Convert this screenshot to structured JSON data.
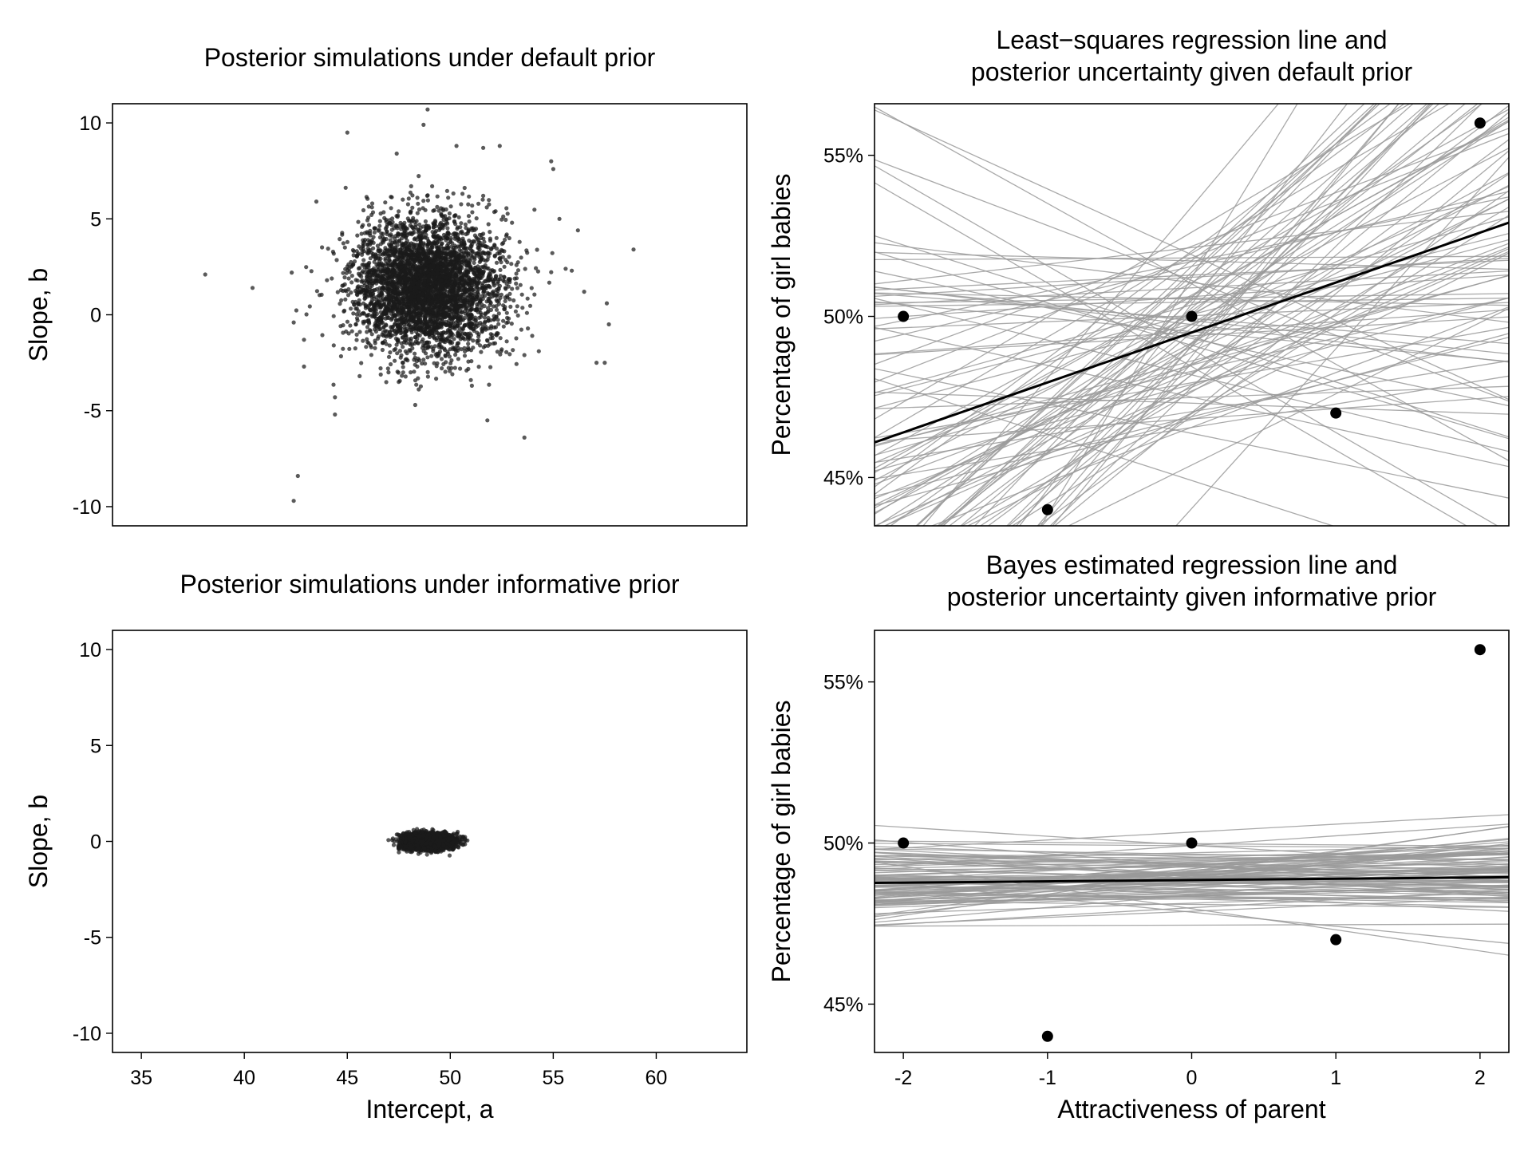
{
  "chart_data": [
    {
      "type": "scatter",
      "title": [
        "Posterior simulations under default prior"
      ],
      "xlabel": "",
      "ylabel": "Slope, b",
      "xlim": [
        33.6,
        64.4
      ],
      "ylim": [
        -11,
        11
      ],
      "xticks": [],
      "yticks": [
        10,
        5,
        0,
        -5,
        -10
      ],
      "ytick_labels": [
        "10",
        "5",
        "0",
        "-5",
        "-10"
      ],
      "grid": false,
      "point_color": "#1a1a1a",
      "points": [
        [
          48.9,
          10.7
        ],
        [
          48.7,
          9.9
        ],
        [
          45.0,
          9.5
        ],
        [
          50.3,
          8.8
        ],
        [
          51.6,
          8.7
        ],
        [
          52.4,
          8.8
        ],
        [
          47.4,
          8.4
        ],
        [
          54.9,
          8.0
        ],
        [
          55.0,
          7.6
        ],
        [
          43.5,
          5.9
        ],
        [
          38.1,
          2.1
        ],
        [
          40.4,
          1.4
        ],
        [
          42.3,
          2.2
        ],
        [
          42.4,
          -0.4
        ],
        [
          42.9,
          -1.3
        ],
        [
          42.9,
          -2.7
        ],
        [
          44.4,
          -4.3
        ],
        [
          44.4,
          -5.2
        ],
        [
          48.3,
          -4.7
        ],
        [
          51.8,
          -5.5
        ],
        [
          53.6,
          -6.4
        ],
        [
          42.6,
          -8.4
        ],
        [
          42.4,
          -9.7
        ],
        [
          58.9,
          3.4
        ],
        [
          57.6,
          0.6
        ],
        [
          57.5,
          -2.5
        ],
        [
          57.1,
          -2.5
        ],
        [
          57.7,
          -0.5
        ],
        [
          56.5,
          1.2
        ],
        [
          55.6,
          2.4
        ],
        [
          56.2,
          4.4
        ],
        [
          55.9,
          2.3
        ],
        [
          55.3,
          5.0
        ],
        [
          47.3,
          -2.4
        ],
        [
          47.0,
          -3.0
        ],
        [
          48.4,
          -2.7
        ],
        [
          50.1,
          -3.1
        ],
        [
          51.0,
          -3.4
        ],
        [
          53.6,
          -2.1
        ],
        [
          54.3,
          -1.9
        ],
        [
          45.6,
          -3.2
        ],
        [
          46.1,
          -0.8
        ],
        [
          51.6,
          6.2
        ],
        [
          52.2,
          5.4
        ],
        [
          53.0,
          4.8
        ],
        [
          49.9,
          6.1
        ],
        [
          48.1,
          6.7
        ],
        [
          46.2,
          5.6
        ]
      ]
    },
    {
      "type": "line",
      "title": [
        "Least−squares regression line and",
        "posterior uncertainty given default prior"
      ],
      "xlabel": "",
      "ylabel": "Percentage of girl babies",
      "xlim": [
        -2.2,
        2.2
      ],
      "ylim": [
        43.5,
        56.6
      ],
      "xticks": [],
      "yticks": [
        55,
        50,
        45
      ],
      "ytick_labels": [
        "55%",
        "50%",
        "45%"
      ],
      "grid": false,
      "line_color": "#9a9a9a",
      "fit_color": "#000000",
      "fit": {
        "intercept": 49.5,
        "slope": 1.55
      },
      "posterior_center": {
        "intercept": 49.5,
        "slope": 1.55
      },
      "posterior_spread": {
        "intercept": 2.0,
        "slope": 2.05
      },
      "posterior_draws": 100,
      "points": [
        [
          -2,
          50
        ],
        [
          -1,
          44
        ],
        [
          0,
          50
        ],
        [
          1,
          47
        ],
        [
          2,
          56
        ]
      ]
    },
    {
      "type": "scatter",
      "title": [
        "Posterior simulations under informative prior"
      ],
      "xlabel": "Intercept, a",
      "ylabel": "Slope, b",
      "xlim": [
        33.6,
        64.4
      ],
      "ylim": [
        -11,
        11
      ],
      "xticks": [
        35,
        40,
        45,
        50,
        55,
        60
      ],
      "xtick_labels": [
        "35",
        "40",
        "45",
        "50",
        "55",
        "60"
      ],
      "yticks": [
        10,
        5,
        0,
        -5,
        -10
      ],
      "ytick_labels": [
        "10",
        "5",
        "0",
        "-5",
        "-10"
      ],
      "grid": false,
      "point_color": "#1a1a1a",
      "points": [
        [
          47.5,
          -0.4
        ],
        [
          50.5,
          0.0
        ],
        [
          47.6,
          0.3
        ],
        [
          50.2,
          -0.3
        ],
        [
          50.3,
          0.4
        ]
      ]
    },
    {
      "type": "line",
      "title": [
        "Bayes estimated regression line and",
        "posterior uncertainty given informative prior"
      ],
      "xlabel": "Attractiveness of parent",
      "ylabel": "Percentage of girl babies",
      "xlim": [
        -2.2,
        2.2
      ],
      "ylim": [
        43.5,
        56.6
      ],
      "xticks": [
        -2,
        -1,
        0,
        1,
        2
      ],
      "xtick_labels": [
        "-2",
        "-1",
        "0",
        "1",
        "2"
      ],
      "yticks": [
        55,
        50,
        45
      ],
      "ytick_labels": [
        "55%",
        "50%",
        "45%"
      ],
      "grid": false,
      "line_color": "#9a9a9a",
      "fit_color": "#000000",
      "fit": {
        "intercept": 48.85,
        "slope": 0.04
      },
      "posterior_center": {
        "intercept": 48.85,
        "slope": 0.04
      },
      "posterior_spread": {
        "intercept": 0.5,
        "slope": 0.2
      },
      "posterior_draws": 100,
      "points": [
        [
          -2,
          50
        ],
        [
          -1,
          44
        ],
        [
          0,
          50
        ],
        [
          1,
          47
        ],
        [
          2,
          56
        ]
      ]
    }
  ]
}
